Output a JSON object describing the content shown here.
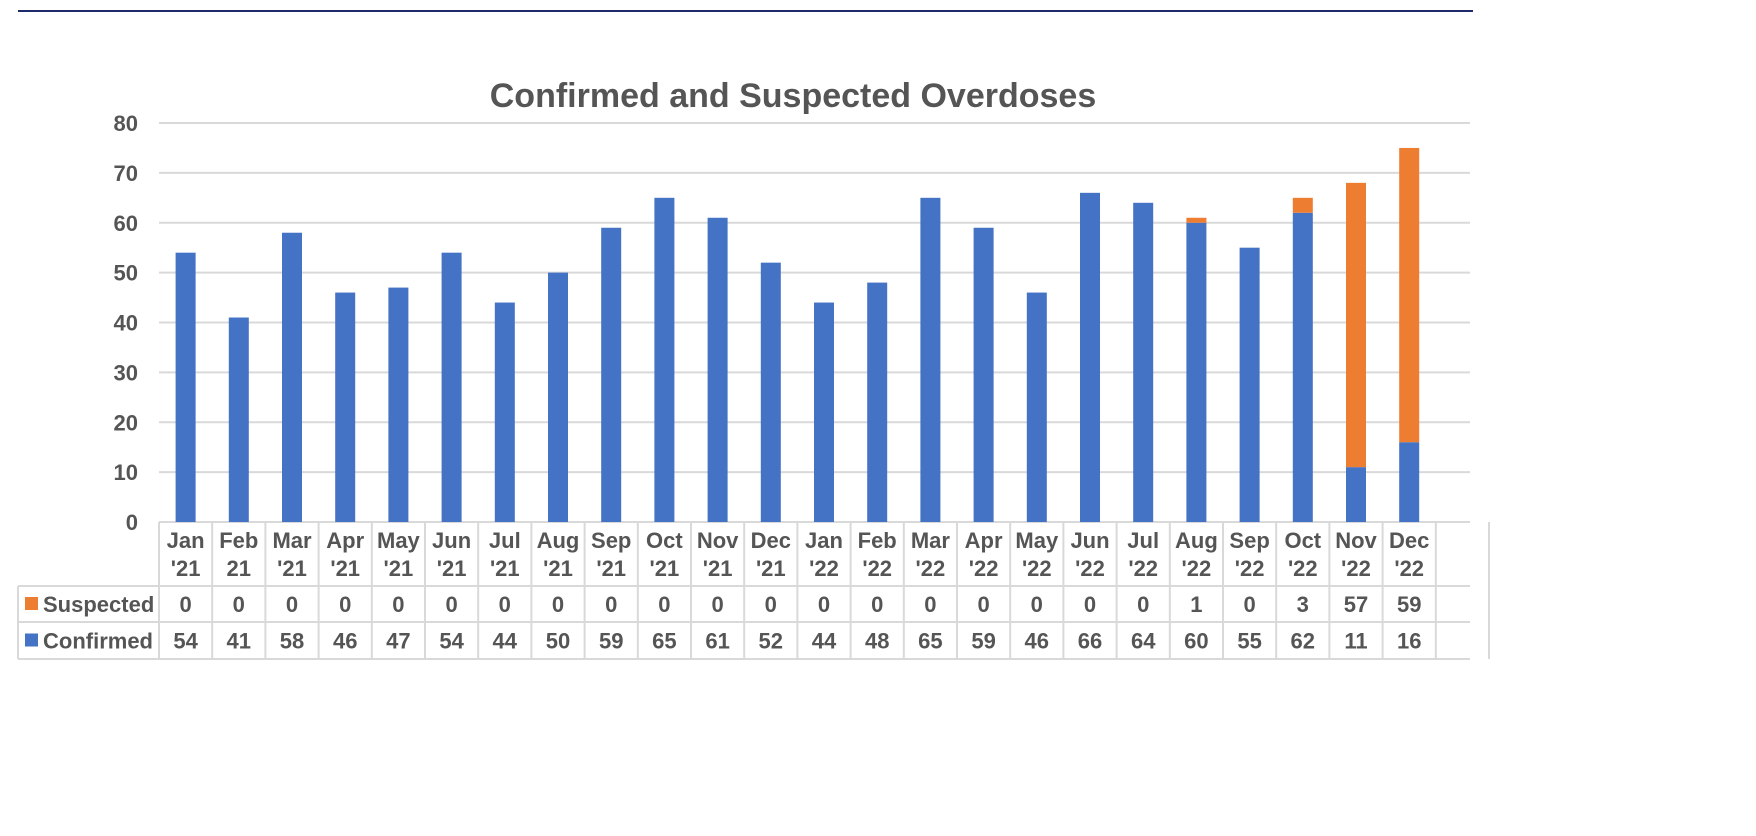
{
  "chart_data": {
    "type": "bar",
    "stacked": true,
    "title": "Confirmed and Suspected Overdoses",
    "xlabel": "",
    "ylabel": "",
    "ylim": [
      0,
      80
    ],
    "y_ticks": [
      0,
      10,
      20,
      30,
      40,
      50,
      60,
      70,
      80
    ],
    "grid": true,
    "legend_placement": "data-table-left",
    "categories": [
      [
        "Jan",
        "'21"
      ],
      [
        "Feb",
        "21"
      ],
      [
        "Mar",
        "'21"
      ],
      [
        "Apr",
        "'21"
      ],
      [
        "May",
        "'21"
      ],
      [
        "Jun",
        "'21"
      ],
      [
        "Jul",
        "'21"
      ],
      [
        "Aug",
        "'21"
      ],
      [
        "Sep",
        "'21"
      ],
      [
        "Oct",
        "'21"
      ],
      [
        "Nov",
        "'21"
      ],
      [
        "Dec",
        "'21"
      ],
      [
        "Jan",
        "'22"
      ],
      [
        "Feb",
        "'22"
      ],
      [
        "Mar",
        "'22"
      ],
      [
        "Apr",
        "'22"
      ],
      [
        "May",
        "'22"
      ],
      [
        "Jun",
        "'22"
      ],
      [
        "Jul",
        "'22"
      ],
      [
        "Aug",
        "'22"
      ],
      [
        "Sep",
        "'22"
      ],
      [
        "Oct",
        "'22"
      ],
      [
        "Nov",
        "'22"
      ],
      [
        "Dec",
        "'22"
      ]
    ],
    "series": [
      {
        "name": "Confirmed",
        "color": "#4472c4",
        "values": [
          54,
          41,
          58,
          46,
          47,
          54,
          44,
          50,
          59,
          65,
          61,
          52,
          44,
          48,
          65,
          59,
          46,
          66,
          64,
          60,
          55,
          62,
          11,
          16
        ]
      },
      {
        "name": "Suspected",
        "color": "#ed7d31",
        "values": [
          0,
          0,
          0,
          0,
          0,
          0,
          0,
          0,
          0,
          0,
          0,
          0,
          0,
          0,
          0,
          0,
          0,
          0,
          0,
          1,
          0,
          3,
          57,
          59
        ]
      }
    ],
    "table_row_order": [
      "Suspected",
      "Confirmed"
    ]
  },
  "colors": {
    "top_rule": "#1f2a6b",
    "gridline": "#d9d9d9",
    "text": "#555555"
  }
}
